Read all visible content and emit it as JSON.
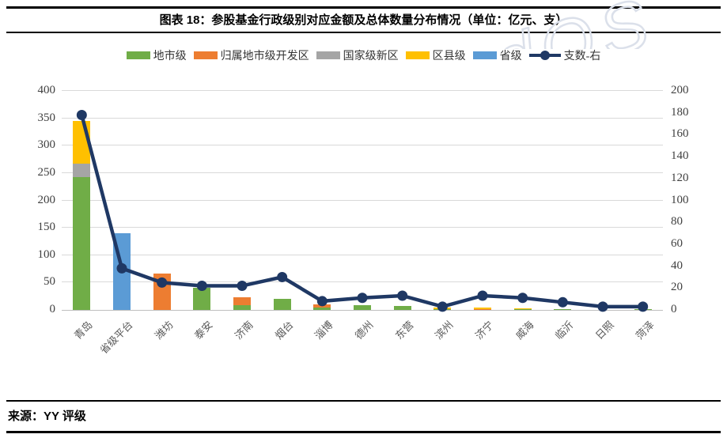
{
  "header": {
    "title": "图表 18：参股基金行政级别对应金额及总体数量分布情况（单位：亿元、支）"
  },
  "source": {
    "label": "来源：YY 评级"
  },
  "watermark": {
    "text": "dOS"
  },
  "chart_data": {
    "type": "bar",
    "subtype": "stacked-bar-with-line-overlay",
    "title": "图表 18：参股基金行政级别对应金额及总体数量分布情况（单位：亿元、支）",
    "categories": [
      "青岛",
      "省级平台",
      "潍坊",
      "泰安",
      "济南",
      "烟台",
      "淄博",
      "德州",
      "东营",
      "滨州",
      "济宁",
      "威海",
      "临沂",
      "日照",
      "菏泽"
    ],
    "series": [
      {
        "name": "地市级",
        "type": "bar",
        "color": "#70AD47",
        "values": [
          242,
          0,
          0,
          40,
          8,
          20,
          4,
          9,
          7,
          2,
          0,
          1,
          2,
          0,
          2
        ]
      },
      {
        "name": "归属地市级开发区",
        "type": "bar",
        "color": "#ED7D31",
        "values": [
          0,
          0,
          67,
          0,
          15,
          0,
          6,
          0,
          0,
          0,
          2,
          0,
          0,
          0,
          0
        ]
      },
      {
        "name": "国家级新区",
        "type": "bar",
        "color": "#A5A5A5",
        "values": [
          25,
          0,
          0,
          0,
          0,
          0,
          0,
          0,
          0,
          0,
          0,
          0,
          0,
          0,
          0
        ]
      },
      {
        "name": "区县级",
        "type": "bar",
        "color": "#FFC000",
        "values": [
          78,
          0,
          0,
          0,
          0,
          0,
          0,
          0,
          0,
          2,
          3,
          2,
          0,
          0,
          0
        ]
      },
      {
        "name": "省级",
        "type": "bar",
        "color": "#5B9BD5",
        "values": [
          0,
          140,
          0,
          0,
          0,
          0,
          0,
          0,
          0,
          0,
          0,
          0,
          0,
          0,
          0
        ]
      },
      {
        "name": "支数-右",
        "type": "line",
        "axis": "right",
        "color": "#1F3864",
        "values": [
          178,
          38,
          25,
          22,
          22,
          30,
          8,
          11,
          13,
          3,
          13,
          11,
          7,
          3,
          3
        ]
      }
    ],
    "left_axis": {
      "min": 0,
      "max": 400,
      "step": 50,
      "unit": "亿元"
    },
    "right_axis": {
      "min": 0,
      "max": 200,
      "step": 20,
      "unit": "支"
    },
    "grid": true,
    "legend_position": "top",
    "xlabel": "",
    "ylabel": ""
  }
}
